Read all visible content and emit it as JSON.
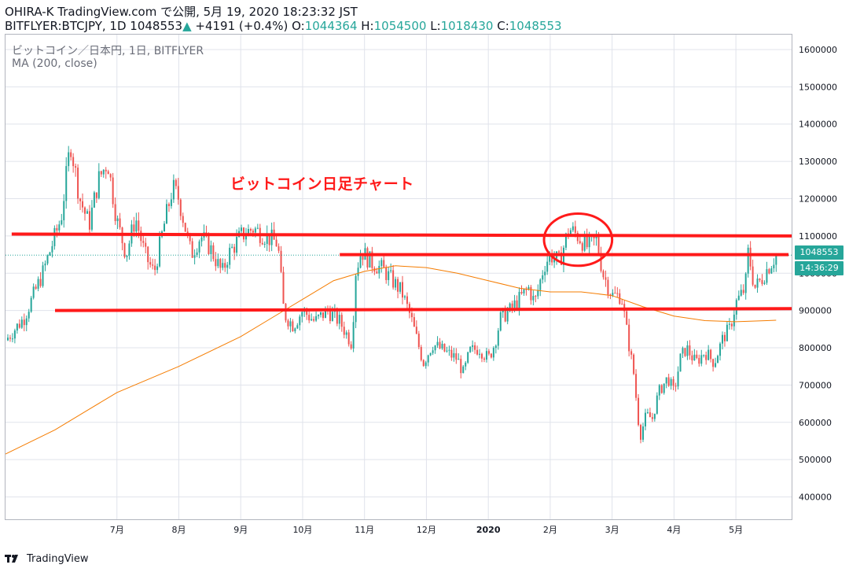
{
  "header": {
    "line1": "OHIRA-K TradingView.com で公開, 5月 19, 2020 18:23:32 JST",
    "symbol_info": "BITFLYER:BTCJPY, 1D 1048553",
    "change": "+4191 (+0.4%)",
    "o_label": "O:",
    "o_value": "1044364",
    "h_label": "H:",
    "h_value": "1054500",
    "l_label": "L:",
    "l_value": "1018430",
    "c_label": "C:",
    "c_value": "1048553"
  },
  "legend": {
    "series": "ビットコイン／日本円, 1日, BITFLYER",
    "indicator": "MA (200, close)"
  },
  "annotation": "ビットコイン日足チャート",
  "price_tag": "1048553",
  "timer_tag": "14:36:29",
  "footer": {
    "brand": "TradingView"
  },
  "colors": {
    "up": "#26a69a",
    "down": "#ef5350",
    "ma": "#f57c00",
    "annotation": "#ff1a1a",
    "grid": "#e0e3eb"
  },
  "chart_data": {
    "type": "candlestick",
    "title": "ビットコイン／日本円, 1日, BITFLYER",
    "indicator": "MA (200, close)",
    "y_ticks": [
      400000,
      500000,
      600000,
      700000,
      800000,
      900000,
      1000000,
      1100000,
      1200000,
      1300000,
      1400000,
      1500000,
      1600000
    ],
    "ylim": [
      340000,
      1640000
    ],
    "x_ticks": [
      {
        "label": "7月",
        "month": 1
      },
      {
        "label": "8月",
        "month": 2
      },
      {
        "label": "9月",
        "month": 3
      },
      {
        "label": "10月",
        "month": 4
      },
      {
        "label": "11月",
        "month": 5
      },
      {
        "label": "12月",
        "month": 6
      },
      {
        "label": "2020",
        "month": 7
      },
      {
        "label": "2月",
        "month": 8
      },
      {
        "label": "3月",
        "month": 9
      },
      {
        "label": "4月",
        "month": 10
      },
      {
        "label": "5月",
        "month": 11
      }
    ],
    "xlim_months": [
      -0.8,
      11.9
    ],
    "close_path": [
      [
        -0.8,
        820000
      ],
      [
        -0.5,
        880000
      ],
      [
        -0.2,
        1000000
      ],
      [
        0.1,
        1150000
      ],
      [
        0.25,
        1350000
      ],
      [
        0.4,
        1200000
      ],
      [
        0.55,
        1130000
      ],
      [
        0.7,
        1250000
      ],
      [
        0.85,
        1300000
      ],
      [
        1.0,
        1140000
      ],
      [
        1.15,
        1050000
      ],
      [
        1.3,
        1150000
      ],
      [
        1.45,
        1050000
      ],
      [
        1.6,
        1000000
      ],
      [
        1.75,
        1120000
      ],
      [
        1.9,
        1230000
      ],
      [
        2.0,
        1200000
      ],
      [
        2.2,
        1050000
      ],
      [
        2.35,
        1100000
      ],
      [
        2.5,
        1070000
      ],
      [
        2.7,
        1000000
      ],
      [
        2.8,
        1050000
      ],
      [
        3.0,
        1100000
      ],
      [
        3.2,
        1120000
      ],
      [
        3.4,
        1100000
      ],
      [
        3.6,
        1080000
      ],
      [
        3.7,
        890000
      ],
      [
        3.85,
        860000
      ],
      [
        4.0,
        900000
      ],
      [
        4.2,
        870000
      ],
      [
        4.4,
        900000
      ],
      [
        4.6,
        870000
      ],
      [
        4.8,
        810000
      ],
      [
        4.85,
        1000000
      ],
      [
        4.95,
        1060000
      ],
      [
        5.1,
        1030000
      ],
      [
        5.3,
        1010000
      ],
      [
        5.45,
        980000
      ],
      [
        5.6,
        950000
      ],
      [
        5.75,
        880000
      ],
      [
        5.85,
        820000
      ],
      [
        5.95,
        760000
      ],
      [
        6.1,
        810000
      ],
      [
        6.3,
        790000
      ],
      [
        6.5,
        770000
      ],
      [
        6.6,
        730000
      ],
      [
        6.7,
        790000
      ],
      [
        6.85,
        800000
      ],
      [
        7.0,
        770000
      ],
      [
        7.1,
        810000
      ],
      [
        7.2,
        880000
      ],
      [
        7.35,
        900000
      ],
      [
        7.5,
        930000
      ],
      [
        7.65,
        960000
      ],
      [
        7.75,
        920000
      ],
      [
        7.9,
        1020000
      ],
      [
        8.0,
        1050000
      ],
      [
        8.15,
        1030000
      ],
      [
        8.3,
        1120000
      ],
      [
        8.45,
        1100000
      ],
      [
        8.6,
        1070000
      ],
      [
        8.75,
        1090000
      ],
      [
        8.85,
        1000000
      ],
      [
        9.0,
        940000
      ],
      [
        9.15,
        940000
      ],
      [
        9.25,
        830000
      ],
      [
        9.35,
        730000
      ],
      [
        9.45,
        560000
      ],
      [
        9.55,
        620000
      ],
      [
        9.65,
        610000
      ],
      [
        9.75,
        680000
      ],
      [
        9.9,
        720000
      ],
      [
        10.0,
        680000
      ],
      [
        10.1,
        770000
      ],
      [
        10.2,
        800000
      ],
      [
        10.35,
        760000
      ],
      [
        10.5,
        790000
      ],
      [
        10.65,
        760000
      ],
      [
        10.8,
        830000
      ],
      [
        10.9,
        850000
      ],
      [
        11.0,
        920000
      ],
      [
        11.15,
        960000
      ],
      [
        11.2,
        1060000
      ],
      [
        11.3,
        960000
      ],
      [
        11.4,
        980000
      ],
      [
        11.5,
        1010000
      ],
      [
        11.65,
        1048553
      ]
    ],
    "ma200_path": [
      [
        -0.8,
        515000
      ],
      [
        0.0,
        580000
      ],
      [
        0.5,
        630000
      ],
      [
        1.0,
        680000
      ],
      [
        2.0,
        750000
      ],
      [
        3.0,
        830000
      ],
      [
        3.5,
        880000
      ],
      [
        4.0,
        930000
      ],
      [
        4.5,
        980000
      ],
      [
        5.0,
        1005000
      ],
      [
        5.5,
        1020000
      ],
      [
        6.0,
        1015000
      ],
      [
        6.5,
        1000000
      ],
      [
        7.0,
        980000
      ],
      [
        7.5,
        960000
      ],
      [
        8.0,
        950000
      ],
      [
        8.5,
        950000
      ],
      [
        9.0,
        940000
      ],
      [
        9.5,
        910000
      ],
      [
        10.0,
        885000
      ],
      [
        10.5,
        873000
      ],
      [
        11.0,
        870000
      ],
      [
        11.5,
        873000
      ],
      [
        11.65,
        874000
      ]
    ],
    "annotation_lines": [
      {
        "label": "resistance-1100000",
        "from": [
          -0.7,
          1105000
        ],
        "to": [
          11.9,
          1100000
        ]
      },
      {
        "label": "level-1050000",
        "from": [
          4.6,
          1050000
        ],
        "to": [
          11.85,
          1050000
        ]
      },
      {
        "label": "support-900000",
        "from": [
          -0.0,
          900000
        ],
        "to": [
          11.9,
          905000
        ]
      }
    ],
    "annotation_circle": {
      "center": [
        8.45,
        1090000
      ],
      "rx_months": 0.55,
      "ry_price": 70000
    },
    "last_price": 1048553
  }
}
